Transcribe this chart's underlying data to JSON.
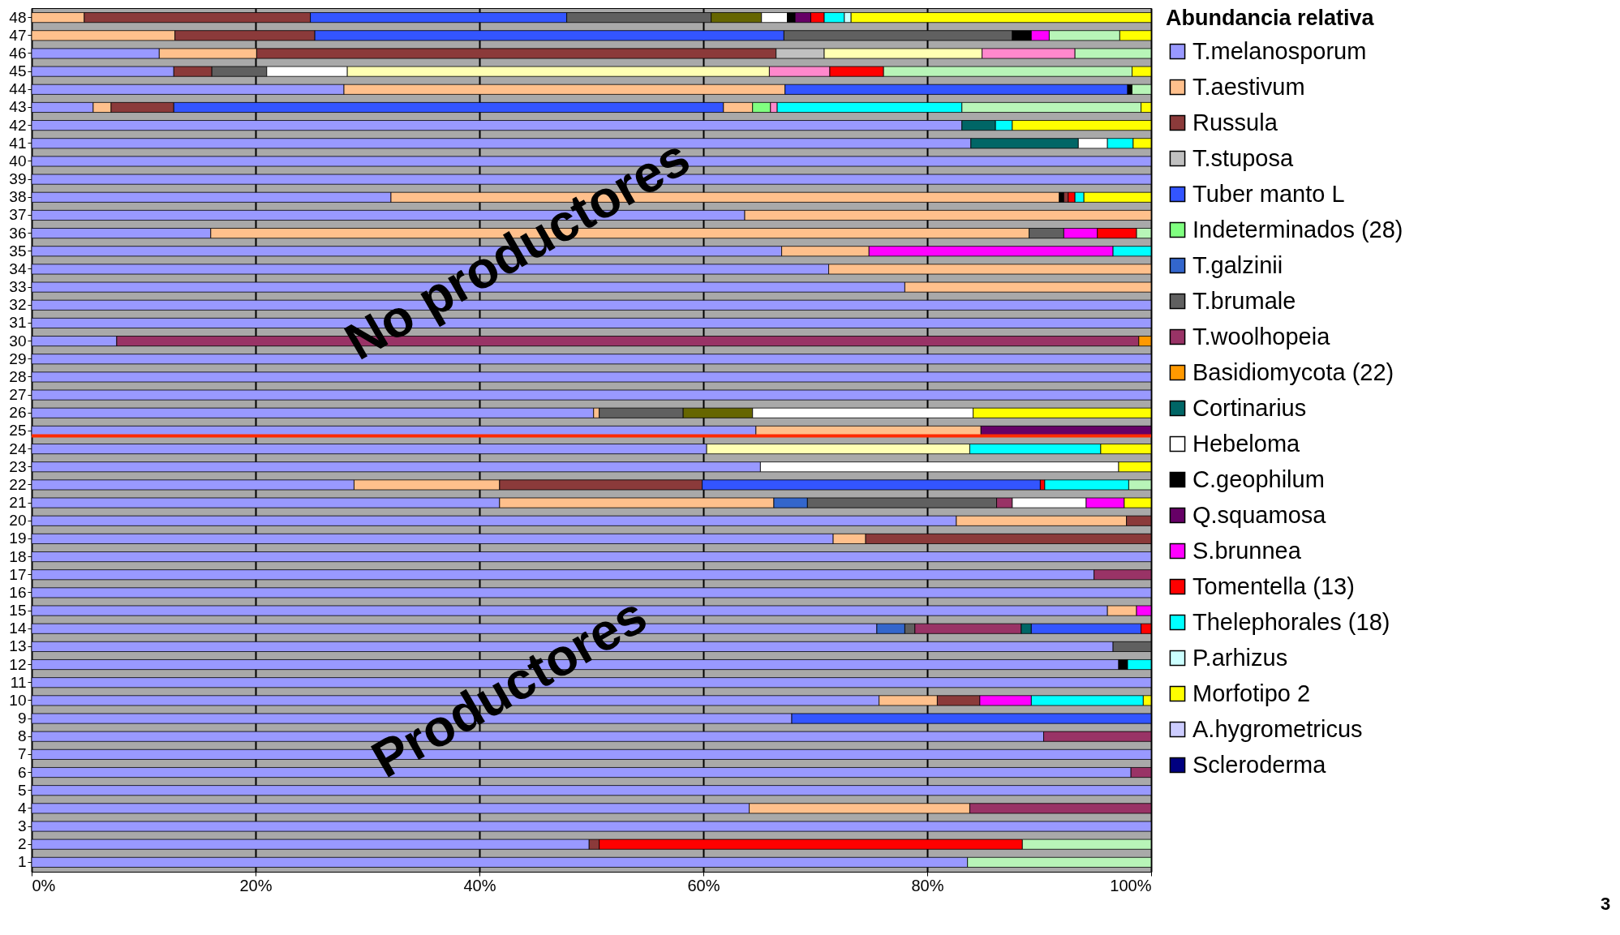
{
  "chart_data": {
    "type": "bar",
    "orientation": "horizontal",
    "stacked": true,
    "legend_title": "Abundancia relativa",
    "legend": "right",
    "grid": "x",
    "categories": [
      "48",
      "47",
      "46",
      "45",
      "44",
      "43",
      "42",
      "41",
      "40",
      "39",
      "38",
      "37",
      "36",
      "35",
      "34",
      "33",
      "32",
      "31",
      "30",
      "29",
      "28",
      "27",
      "26",
      "25",
      "24",
      "23",
      "22",
      "21",
      "20",
      "19",
      "18",
      "17",
      "16",
      "15",
      "14",
      "13",
      "12",
      "11",
      "10",
      "9",
      "8",
      "7",
      "6",
      "5",
      "4",
      "3",
      "2",
      "1"
    ],
    "xlim": [
      0,
      100
    ],
    "xticks": [
      {
        "value": 0,
        "label": "0%"
      },
      {
        "value": 20,
        "label": "20%"
      },
      {
        "value": 40,
        "label": "40%"
      },
      {
        "value": 60,
        "label": "60%"
      },
      {
        "value": 80,
        "label": "80%"
      },
      {
        "value": 100,
        "label": "100%"
      }
    ],
    "ref_lines": [
      {
        "axis": "y",
        "value": "25",
        "color": "#ff2a00"
      }
    ],
    "annotations": [
      "No productores",
      "Productores",
      "3"
    ],
    "series": [
      {
        "name": "T.melanosporum",
        "color": "#9999ff",
        "values": [
          null,
          null,
          11.4,
          12.7,
          27.9,
          5.5,
          83.1,
          83.9,
          100,
          100,
          32.1,
          63.7,
          16.0,
          67.0,
          71.2,
          78.0,
          100,
          100,
          7.6,
          100,
          100,
          100,
          50.2,
          64.7,
          60.3,
          65.1,
          28.8,
          41.8,
          82.6,
          71.6,
          100,
          94.9,
          100,
          96.1,
          75.5,
          96.6,
          97.1,
          100,
          75.7,
          67.9,
          90.4,
          100,
          98.2,
          100,
          64.1,
          100,
          49.8,
          83.6
        ]
      },
      {
        "name": "T.aestivum",
        "color": "#ffc08c",
        "values": [
          4.7,
          12.8,
          8.7,
          null,
          39.4,
          1.6,
          null,
          null,
          null,
          null,
          59.7,
          36.3,
          73.1,
          7.8,
          28.8,
          22.0,
          null,
          null,
          null,
          null,
          null,
          null,
          0.5,
          20.1,
          null,
          null,
          13.0,
          24.5,
          15.2,
          2.9,
          null,
          null,
          null,
          2.6,
          null,
          null,
          null,
          null,
          5.2,
          null,
          null,
          null,
          null,
          null,
          19.7,
          null,
          null,
          null
        ]
      },
      {
        "color": "#000000",
        "values": [
          null,
          null,
          null,
          null,
          null,
          null,
          null,
          null,
          null,
          null,
          0.4,
          null,
          null,
          null,
          null,
          null,
          null,
          null,
          null,
          null,
          null,
          null,
          null,
          null,
          null,
          null,
          null,
          null,
          null,
          null,
          null,
          null,
          null,
          null,
          null,
          null,
          null,
          null,
          null,
          null,
          null,
          null,
          null,
          null,
          null,
          null,
          null,
          null
        ]
      },
      {
        "name": "Russula",
        "color": "#8b3a3a",
        "values": [
          20.2,
          12.5,
          46.4,
          3.4,
          null,
          5.6,
          null,
          null,
          null,
          null,
          0.4,
          null,
          null,
          null,
          null,
          null,
          null,
          null,
          null,
          null,
          null,
          null,
          null,
          null,
          null,
          null,
          18.1,
          null,
          2.2,
          25.5,
          null,
          null,
          null,
          null,
          null,
          null,
          null,
          null,
          3.8,
          null,
          null,
          null,
          null,
          null,
          null,
          null,
          0.9,
          null
        ]
      },
      {
        "name": "T.stuposa",
        "color": "#c0c0c0",
        "values": [
          null,
          null,
          4.3,
          null,
          null,
          null,
          null,
          null,
          null,
          null,
          null,
          null,
          null,
          null,
          null,
          null,
          null,
          null,
          null,
          null,
          null,
          null,
          null,
          null,
          null,
          null,
          null,
          null,
          null,
          null,
          null,
          null,
          null,
          null,
          null,
          null,
          null,
          null,
          null,
          null,
          null,
          null,
          null,
          null,
          null,
          null,
          null,
          null
        ]
      },
      {
        "name": "Tuber manto L",
        "color": "#3355ff",
        "values": [
          22.9,
          41.9,
          null,
          null,
          30.6,
          49.1,
          null,
          null,
          null,
          null,
          null,
          null,
          null,
          null,
          null,
          null,
          null,
          null,
          null,
          null,
          null,
          null,
          null,
          null,
          null,
          null,
          30.2,
          null,
          null,
          null,
          null,
          null,
          null,
          null,
          null,
          null,
          null,
          null,
          null,
          32.1,
          null,
          null,
          null,
          null,
          null,
          null,
          null,
          null
        ]
      },
      {
        "color": "#ffc08c",
        "values": [
          null,
          null,
          null,
          null,
          null,
          2.6,
          null,
          null,
          null,
          null,
          null,
          null,
          null,
          null,
          null,
          null,
          null,
          null,
          null,
          null,
          null,
          null,
          null,
          null,
          null,
          null,
          null,
          null,
          null,
          null,
          null,
          null,
          null,
          null,
          null,
          null,
          null,
          null,
          null,
          null,
          null,
          null,
          null,
          null,
          null,
          null,
          null,
          null
        ]
      },
      {
        "name": "Indeterminados (28)",
        "color": "#80ff80",
        "values": [
          null,
          null,
          null,
          null,
          null,
          1.6,
          null,
          null,
          null,
          null,
          null,
          null,
          null,
          null,
          null,
          null,
          null,
          null,
          null,
          null,
          null,
          null,
          null,
          null,
          null,
          null,
          null,
          null,
          null,
          null,
          null,
          null,
          null,
          null,
          null,
          null,
          null,
          null,
          null,
          null,
          null,
          null,
          null,
          null,
          null,
          null,
          null,
          null
        ]
      },
      {
        "name": "T.galzinii",
        "color": "#3366cc",
        "values": [
          null,
          null,
          null,
          null,
          null,
          null,
          null,
          null,
          null,
          null,
          null,
          null,
          null,
          null,
          null,
          null,
          null,
          null,
          null,
          null,
          null,
          null,
          null,
          null,
          null,
          null,
          null,
          3.0,
          null,
          null,
          null,
          null,
          null,
          null,
          2.5,
          null,
          null,
          null,
          null,
          null,
          null,
          null,
          null,
          null,
          null,
          null,
          null,
          null
        ]
      },
      {
        "name": "T.brumale",
        "color": "#606060",
        "values": [
          12.9,
          20.4,
          null,
          4.9,
          null,
          null,
          null,
          null,
          null,
          null,
          null,
          null,
          3.1,
          null,
          null,
          null,
          null,
          null,
          null,
          null,
          null,
          null,
          7.5,
          null,
          null,
          null,
          null,
          16.9,
          null,
          null,
          null,
          null,
          null,
          null,
          0.9,
          3.4,
          null,
          null,
          null,
          null,
          null,
          null,
          null,
          null,
          null,
          null,
          null,
          null
        ]
      },
      {
        "color": "#666600",
        "values": [
          4.5,
          null,
          null,
          null,
          null,
          null,
          null,
          null,
          null,
          null,
          null,
          null,
          null,
          null,
          null,
          null,
          null,
          null,
          null,
          null,
          null,
          null,
          6.2,
          null,
          null,
          null,
          null,
          null,
          null,
          null,
          null,
          null,
          null,
          null,
          null,
          null,
          null,
          null,
          null,
          null,
          null,
          null,
          null,
          null,
          null,
          null,
          null,
          null
        ]
      },
      {
        "name": "T.woolhopeia",
        "color": "#993366",
        "values": [
          null,
          null,
          null,
          null,
          null,
          null,
          null,
          null,
          null,
          null,
          null,
          null,
          null,
          null,
          null,
          null,
          null,
          null,
          91.3,
          null,
          null,
          null,
          null,
          null,
          null,
          null,
          null,
          1.4,
          null,
          null,
          null,
          5.1,
          null,
          null,
          9.5,
          null,
          null,
          null,
          null,
          null,
          9.6,
          null,
          1.8,
          null,
          16.2,
          null,
          null,
          null
        ]
      },
      {
        "name": "Basidiomycota (22)",
        "color": "#ff9900",
        "values": [
          null,
          null,
          null,
          null,
          null,
          null,
          null,
          null,
          null,
          null,
          null,
          null,
          null,
          null,
          null,
          null,
          null,
          null,
          1.1,
          null,
          null,
          null,
          null,
          null,
          null,
          null,
          null,
          null,
          null,
          null,
          null,
          null,
          null,
          null,
          null,
          null,
          null,
          null,
          null,
          null,
          null,
          null,
          null,
          null,
          null,
          null,
          null,
          null
        ]
      },
      {
        "name": "Cortinarius",
        "color": "#006666",
        "values": [
          null,
          null,
          null,
          null,
          null,
          null,
          3.0,
          9.6,
          null,
          null,
          null,
          null,
          null,
          null,
          null,
          null,
          null,
          null,
          null,
          null,
          null,
          null,
          null,
          null,
          null,
          null,
          null,
          null,
          null,
          null,
          null,
          null,
          null,
          null,
          0.9,
          null,
          null,
          null,
          null,
          null,
          null,
          null,
          null,
          null,
          null,
          null,
          null,
          null
        ]
      },
      {
        "color": "#3355ff",
        "values": [
          null,
          null,
          null,
          null,
          null,
          null,
          null,
          null,
          null,
          null,
          null,
          null,
          null,
          null,
          null,
          null,
          null,
          null,
          null,
          null,
          null,
          null,
          null,
          null,
          null,
          null,
          null,
          null,
          null,
          null,
          null,
          null,
          null,
          null,
          9.8,
          null,
          null,
          null,
          null,
          null,
          null,
          null,
          null,
          null,
          null,
          null,
          null,
          null
        ]
      },
      {
        "name": "Hebeloma",
        "color": "#ffffff",
        "values": [
          2.3,
          null,
          null,
          7.2,
          null,
          null,
          null,
          2.6,
          null,
          null,
          null,
          null,
          null,
          null,
          null,
          null,
          null,
          null,
          null,
          null,
          null,
          null,
          19.7,
          null,
          null,
          32.0,
          null,
          6.6,
          null,
          null,
          null,
          null,
          null,
          null,
          null,
          null,
          null,
          null,
          null,
          null,
          null,
          null,
          null,
          null,
          null,
          null,
          null,
          null
        ]
      },
      {
        "color": "#ffffb3",
        "values": [
          null,
          null,
          14.1,
          37.7,
          null,
          null,
          null,
          null,
          null,
          null,
          null,
          null,
          null,
          null,
          null,
          null,
          null,
          null,
          null,
          null,
          null,
          null,
          null,
          null,
          23.5,
          null,
          null,
          null,
          null,
          null,
          null,
          null,
          null,
          null,
          null,
          null,
          null,
          null,
          null,
          null,
          null,
          null,
          null,
          null,
          null,
          null,
          null,
          null
        ]
      },
      {
        "name": "C.geophilum",
        "color": "#000000",
        "values": [
          0.7,
          1.7,
          null,
          null,
          0.4,
          null,
          null,
          null,
          null,
          null,
          null,
          null,
          null,
          null,
          null,
          null,
          null,
          null,
          null,
          null,
          null,
          null,
          null,
          null,
          null,
          null,
          null,
          null,
          null,
          null,
          null,
          null,
          null,
          null,
          null,
          null,
          0.8,
          null,
          null,
          null,
          null,
          null,
          null,
          null,
          null,
          null,
          null,
          null
        ]
      },
      {
        "name": "Q.squamosa",
        "color": "#660066",
        "values": [
          1.4,
          null,
          null,
          null,
          null,
          null,
          null,
          null,
          null,
          null,
          null,
          null,
          null,
          null,
          null,
          null,
          null,
          null,
          null,
          null,
          null,
          null,
          null,
          15.2,
          null,
          null,
          null,
          null,
          null,
          null,
          null,
          null,
          null,
          null,
          null,
          null,
          null,
          null,
          null,
          null,
          null,
          null,
          null,
          null,
          null,
          null,
          null,
          null
        ]
      },
      {
        "name": "S.brunnea",
        "color": "#ff00ff",
        "values": [
          null,
          1.6,
          null,
          null,
          null,
          null,
          null,
          null,
          null,
          null,
          null,
          null,
          3.0,
          21.8,
          null,
          null,
          null,
          null,
          null,
          null,
          null,
          null,
          null,
          null,
          null,
          null,
          null,
          3.4,
          null,
          null,
          null,
          null,
          null,
          1.3,
          null,
          null,
          null,
          null,
          4.6,
          null,
          null,
          null,
          null,
          null,
          null,
          null,
          null,
          null
        ]
      },
      {
        "color": "#ff88cc",
        "values": [
          null,
          null,
          8.3,
          5.4,
          null,
          0.6,
          null,
          null,
          null,
          null,
          null,
          null,
          null,
          null,
          null,
          null,
          null,
          null,
          null,
          null,
          null,
          null,
          null,
          null,
          null,
          null,
          null,
          null,
          null,
          null,
          null,
          null,
          null,
          null,
          null,
          null,
          null,
          null,
          null,
          null,
          null,
          null,
          null,
          null,
          null,
          null,
          null,
          null
        ]
      },
      {
        "name": "Tomentella (13)",
        "color": "#ff0000",
        "values": [
          1.2,
          null,
          null,
          4.8,
          null,
          null,
          null,
          null,
          null,
          null,
          0.6,
          null,
          3.5,
          null,
          null,
          null,
          null,
          null,
          null,
          null,
          null,
          null,
          null,
          null,
          null,
          null,
          0.4,
          null,
          null,
          null,
          null,
          null,
          null,
          null,
          0.9,
          null,
          null,
          null,
          null,
          null,
          null,
          null,
          null,
          null,
          null,
          null,
          37.8,
          null
        ]
      },
      {
        "name": "Thelephorales (18)",
        "color": "#00ffff",
        "values": [
          1.8,
          null,
          null,
          null,
          null,
          16.5,
          1.5,
          2.3,
          null,
          null,
          0.8,
          null,
          null,
          3.4,
          null,
          null,
          null,
          null,
          null,
          null,
          null,
          null,
          null,
          null,
          11.7,
          null,
          7.5,
          null,
          null,
          null,
          null,
          null,
          null,
          null,
          null,
          null,
          2.1,
          null,
          10.0,
          null,
          null,
          null,
          null,
          null,
          null,
          null,
          null,
          null
        ]
      },
      {
        "name": "P.arhizus",
        "color": "#ccffff",
        "values": [
          0.6,
          null,
          null,
          null,
          null,
          null,
          null,
          null,
          null,
          null,
          null,
          null,
          null,
          null,
          null,
          null,
          null,
          null,
          null,
          null,
          null,
          null,
          null,
          null,
          null,
          null,
          null,
          null,
          null,
          null,
          null,
          null,
          null,
          null,
          null,
          null,
          null,
          null,
          null,
          null,
          null,
          null,
          null,
          null,
          null,
          null,
          null,
          null
        ]
      },
      {
        "color": "#b8f5b8",
        "values": [
          null,
          6.3,
          6.8,
          22.2,
          1.7,
          16.0,
          null,
          null,
          null,
          null,
          null,
          null,
          1.3,
          null,
          null,
          null,
          null,
          null,
          null,
          null,
          null,
          null,
          null,
          null,
          null,
          null,
          2.0,
          null,
          null,
          null,
          null,
          null,
          null,
          null,
          null,
          null,
          null,
          null,
          null,
          null,
          null,
          null,
          null,
          null,
          null,
          null,
          11.5,
          16.4
        ]
      },
      {
        "name": "Morfotipo 2",
        "color": "#ffff00",
        "values": [
          26.8,
          2.8,
          null,
          1.7,
          null,
          0.9,
          12.4,
          1.6,
          null,
          null,
          6.0,
          null,
          null,
          null,
          null,
          null,
          null,
          null,
          null,
          null,
          null,
          null,
          15.9,
          null,
          4.5,
          2.9,
          null,
          2.4,
          null,
          null,
          null,
          null,
          null,
          null,
          null,
          null,
          null,
          null,
          0.7,
          null,
          null,
          null,
          null,
          null,
          null,
          null,
          null,
          null
        ]
      },
      {
        "name": "A.hygrometricus",
        "color": "#ccccff",
        "values": [
          null,
          null,
          null,
          null,
          null,
          null,
          null,
          null,
          null,
          null,
          null,
          null,
          null,
          null,
          null,
          null,
          null,
          null,
          null,
          null,
          null,
          null,
          null,
          null,
          null,
          null,
          null,
          null,
          null,
          null,
          null,
          null,
          null,
          null,
          null,
          null,
          null,
          null,
          null,
          null,
          null,
          null,
          null,
          null,
          null,
          null,
          null,
          null
        ]
      },
      {
        "name": "Scleroderma",
        "color": "#000080",
        "values": [
          null,
          null,
          null,
          null,
          null,
          null,
          null,
          null,
          null,
          null,
          null,
          null,
          null,
          null,
          null,
          null,
          null,
          null,
          null,
          null,
          null,
          null,
          null,
          null,
          null,
          null,
          null,
          null,
          null,
          null,
          null,
          null,
          null,
          null,
          null,
          null,
          null,
          null,
          null,
          null,
          null,
          null,
          null,
          null,
          null,
          null,
          null,
          null
        ]
      }
    ]
  }
}
